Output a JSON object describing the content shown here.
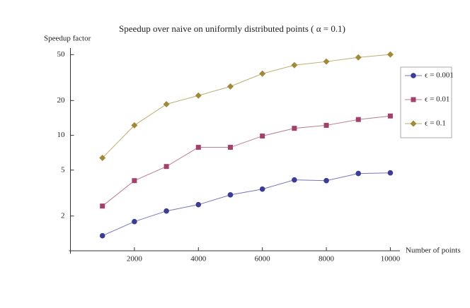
{
  "chart_data": {
    "type": "line",
    "title": "Speedup over naive on uniformly distributed points ( α = 0.1)",
    "y_label": "Speedup factor",
    "x_label": "Number of points",
    "log_y": true,
    "x": [
      1000,
      2000,
      3000,
      4000,
      5000,
      6000,
      7000,
      8000,
      9000,
      10000
    ],
    "xlim": [
      0,
      10300
    ],
    "xticks": [
      2000,
      4000,
      6000,
      8000,
      10000
    ],
    "ylim": [
      1,
      57
    ],
    "yticks": [
      2,
      5,
      10,
      20,
      50
    ],
    "legend": "right",
    "series": [
      {
        "name": "ϵ = 0.001",
        "color": "#3c3c96",
        "marker": "circle",
        "values": [
          1.35,
          1.79,
          2.21,
          2.51,
          3.05,
          3.42,
          4.11,
          4.05,
          4.67,
          4.73
        ]
      },
      {
        "name": "ϵ = 0.01",
        "color": "#a3416c",
        "marker": "square",
        "values": [
          2.44,
          4.05,
          5.37,
          7.87,
          7.87,
          9.86,
          11.5,
          12.2,
          13.7,
          14.7
        ]
      },
      {
        "name": "ϵ = 0.1",
        "color": "#a08a38",
        "marker": "diamond",
        "values": [
          6.37,
          12.2,
          18.6,
          22.1,
          26.5,
          34.2,
          40.5,
          43.5,
          47.3,
          50.1
        ]
      }
    ]
  }
}
